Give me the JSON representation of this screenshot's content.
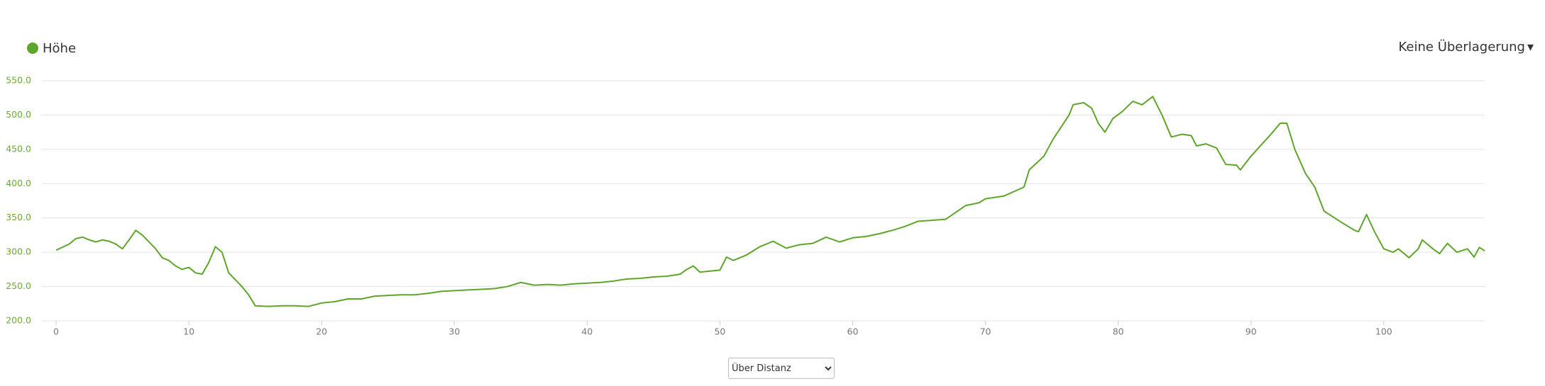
{
  "chart_data": {
    "type": "line",
    "series": [
      {
        "name": "Höhe",
        "color": "#5ea629",
        "values": [
          303,
          312,
          320,
          322,
          318,
          315,
          318,
          316,
          312,
          305,
          318,
          332,
          325,
          315,
          305,
          292,
          288,
          280,
          275,
          278,
          270,
          268,
          285,
          308,
          300,
          270,
          260,
          250,
          238,
          222,
          221,
          222,
          222,
          221,
          226,
          228,
          232,
          232,
          236,
          237,
          238,
          238,
          240,
          243,
          244,
          245,
          246,
          247,
          250,
          256,
          252,
          253,
          252,
          254,
          255,
          256,
          258,
          261,
          262,
          264,
          265,
          268,
          275,
          280,
          271,
          272,
          274,
          293,
          288,
          296,
          308,
          316,
          306,
          311,
          313,
          322,
          315,
          321,
          323,
          327,
          332,
          338,
          345,
          348,
          368,
          372,
          378,
          382,
          395,
          420,
          440,
          465,
          500,
          515,
          518,
          510,
          488,
          475,
          495,
          505,
          520,
          515,
          527,
          500,
          468,
          472,
          470,
          455,
          458,
          452,
          428,
          427,
          420,
          440,
          455,
          472,
          488,
          488,
          450,
          415,
          395,
          360,
          345,
          332,
          330,
          355,
          330,
          305,
          300,
          305,
          292,
          305,
          318,
          305,
          298,
          313,
          300,
          305,
          293,
          307,
          302
        ]
      }
    ],
    "x": [
      0,
      1,
      1.5,
      2,
      2.5,
      3,
      3.5,
      4,
      4.5,
      5,
      5.5,
      6,
      6.5,
      7,
      7.5,
      8,
      8.5,
      9,
      9.5,
      10,
      10.5,
      11,
      11.5,
      12,
      12.5,
      13,
      13.5,
      14,
      14.5,
      15,
      16,
      17,
      18,
      19,
      20,
      21,
      22,
      23,
      24,
      25,
      26,
      27,
      28,
      29,
      30,
      31,
      32,
      33,
      34,
      35,
      36,
      37,
      38,
      39,
      40,
      41,
      42,
      43,
      44,
      45,
      46,
      47,
      47.5,
      48,
      48.5,
      49,
      50,
      50.5,
      51,
      52,
      53,
      54,
      55,
      56,
      57,
      58,
      59,
      60,
      61,
      62,
      63,
      64,
      64.9,
      67,
      68.5,
      69.5,
      70,
      71.4,
      72.9,
      73.3,
      74.4,
      75.1,
      76.3,
      76.6,
      77.4,
      78,
      78.5,
      79,
      79.6,
      80.3,
      81.1,
      81.8,
      82.6,
      83.3,
      84,
      84.8,
      85.5,
      85.9,
      86.6,
      87.4,
      88.1,
      88.9,
      89.2,
      90,
      90.7,
      91.5,
      92.2,
      92.7,
      93.3,
      94.1,
      94.8,
      95.5,
      96.7,
      97.8,
      98.1,
      98.7,
      99.3,
      100,
      100.7,
      101.1,
      101.9,
      102.6,
      102.9,
      103.7,
      104.2,
      104.8,
      105.5,
      106.3,
      106.8,
      107.2,
      107.6
    ],
    "xlim": [
      0,
      107.6
    ],
    "xticks": [
      0,
      10,
      20,
      30,
      40,
      50,
      60,
      70,
      80,
      90,
      100
    ],
    "ylim": [
      200,
      550
    ],
    "yticks": [
      {
        "value": 200,
        "label": "200.0"
      },
      {
        "value": 250,
        "label": "250.0"
      },
      {
        "value": 300,
        "label": "300.0"
      },
      {
        "value": 350,
        "label": "350.0"
      },
      {
        "value": 400,
        "label": "400.0"
      },
      {
        "value": 450,
        "label": "450.0"
      },
      {
        "value": 500,
        "label": "500.0"
      },
      {
        "value": 550,
        "label": "550.0"
      }
    ],
    "grid": true
  },
  "controls": {
    "overlay": "Keine Überlagerung",
    "axis_mode": "Über Distanz"
  }
}
